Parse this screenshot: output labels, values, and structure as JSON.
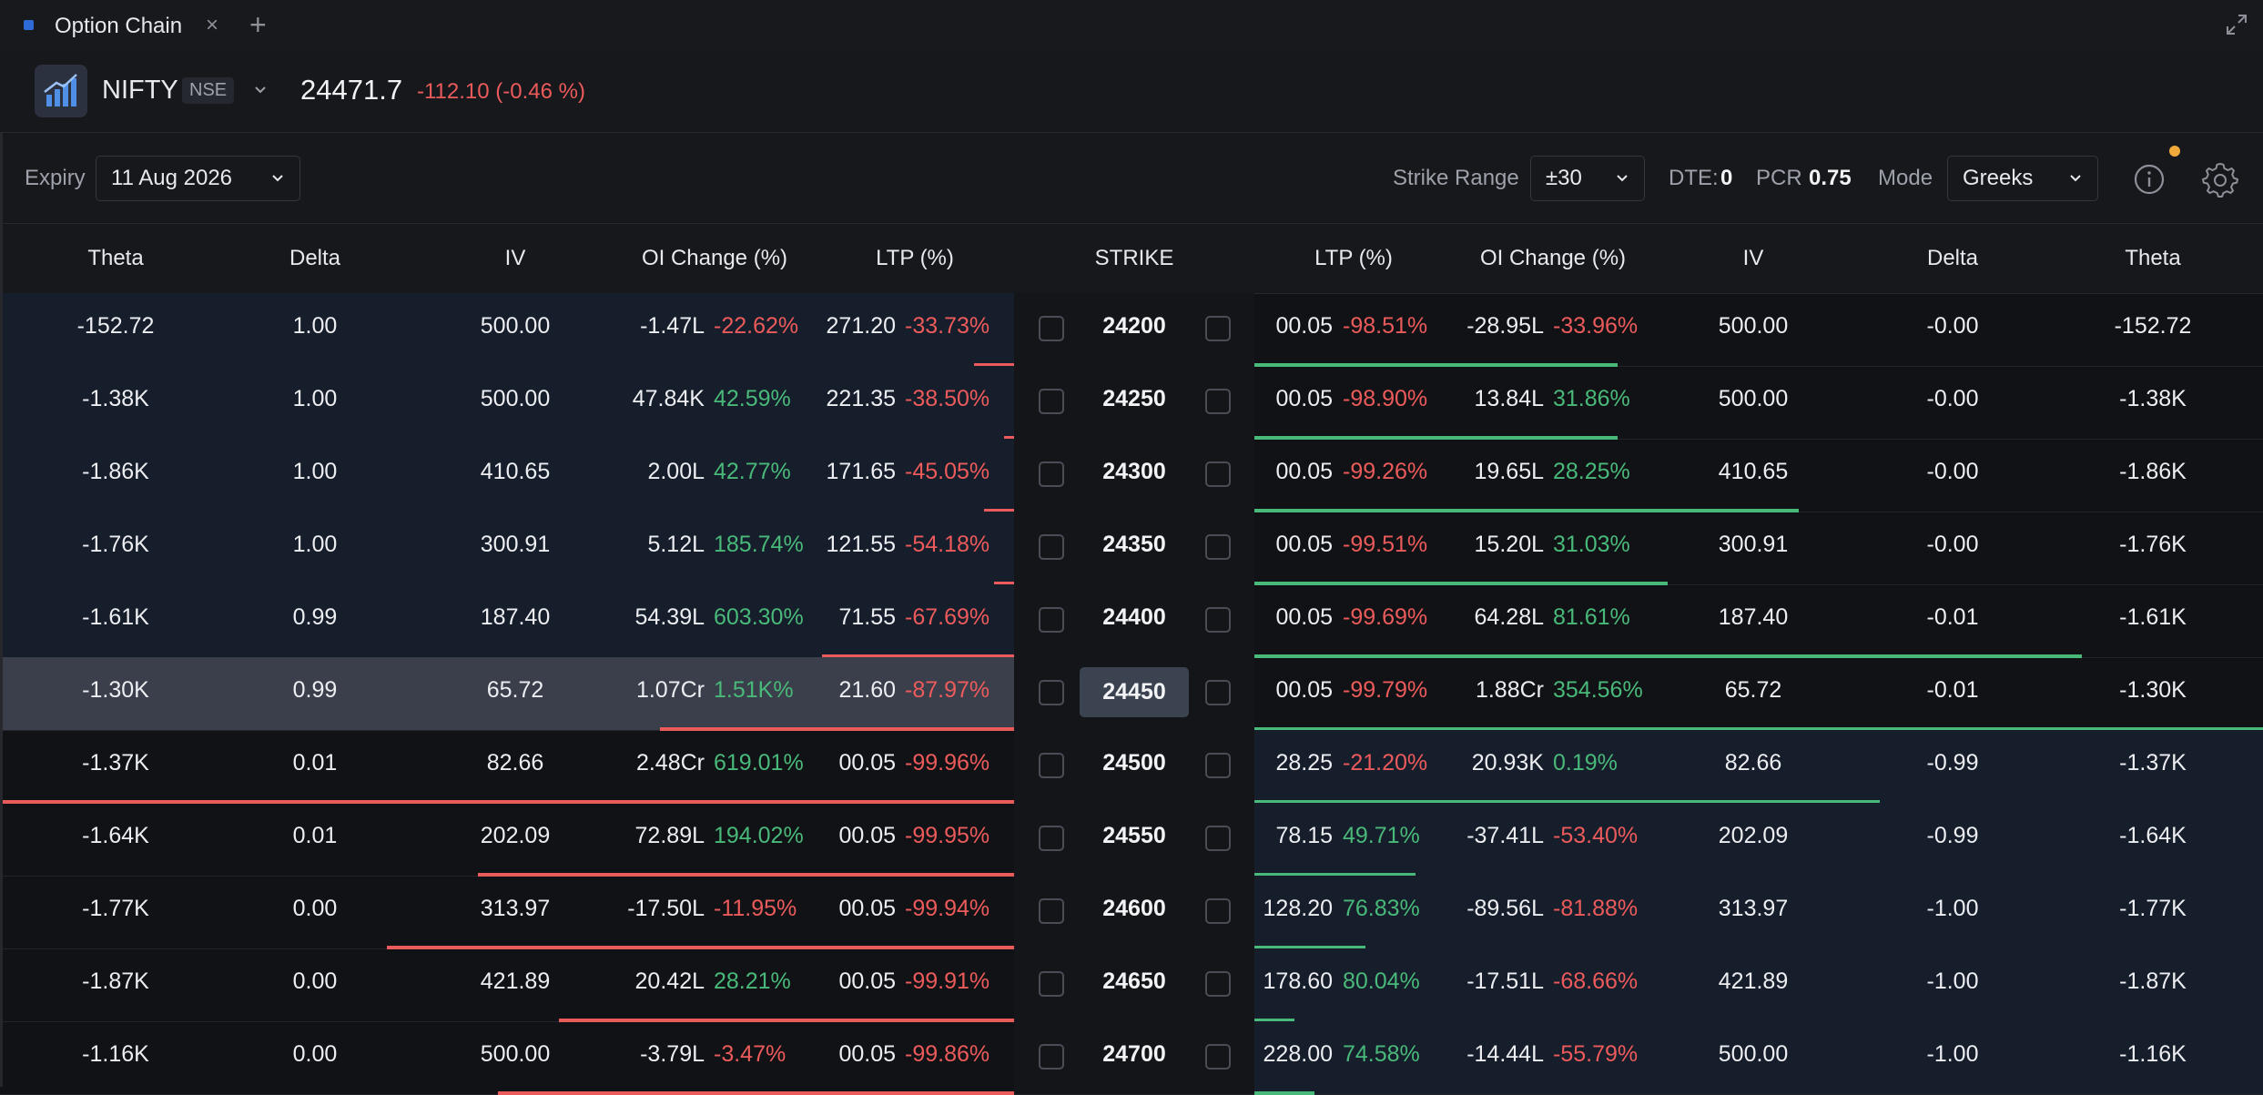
{
  "tab": {
    "title": "Option Chain",
    "close": "×",
    "add": "+"
  },
  "instrument": {
    "symbol": "NIFTY",
    "exchange": "NSE",
    "price": "24471.7",
    "change": "-112.10 (-0.46 %)"
  },
  "controls": {
    "expiry_label": "Expiry",
    "expiry_value": "11 Aug 2026",
    "strike_range_label": "Strike Range",
    "strike_range_value": "±30",
    "dte_label": "DTE:",
    "dte_value": "0",
    "pcr_label": "PCR",
    "pcr_value": "0.75",
    "mode_label": "Mode",
    "mode_value": "Greeks"
  },
  "headers": {
    "call": [
      "Theta",
      "Delta",
      "IV",
      "OI Change (%)",
      "LTP (%)"
    ],
    "strike": "STRIKE",
    "put": [
      "LTP (%)",
      "OI Change (%)",
      "IV",
      "Delta",
      "Theta"
    ]
  },
  "colors": {
    "positive": "#49b97a",
    "negative": "#ec5b5b",
    "accent": "#2e6bd6",
    "notification_dot": "#f0a93b"
  },
  "rows": [
    {
      "strike": "24200",
      "atm": false,
      "call_itm": true,
      "put_itm": false,
      "call": {
        "theta": "-152.72",
        "delta": "1.00",
        "iv": "500.00",
        "oi": "-1.47L",
        "oi_pct": "-22.62%",
        "ltp": "271.20",
        "ltp_pct": "-33.73%",
        "bar": 0.04
      },
      "put": {
        "ltp": "00.05",
        "ltp_pct": "-98.51%",
        "oi": "-28.95L",
        "oi_pct": "-33.96%",
        "iv": "500.00",
        "delta": "-0.00",
        "theta": "-152.72",
        "bar": 0.36
      }
    },
    {
      "strike": "24250",
      "atm": false,
      "call_itm": true,
      "put_itm": false,
      "call": {
        "theta": "-1.38K",
        "delta": "1.00",
        "iv": "500.00",
        "oi": "47.84K",
        "oi_pct": "42.59%",
        "ltp": "221.35",
        "ltp_pct": "-38.50%",
        "bar": 0.01
      },
      "put": {
        "ltp": "00.05",
        "ltp_pct": "-98.90%",
        "oi": "13.84L",
        "oi_pct": "31.86%",
        "iv": "500.00",
        "delta": "-0.00",
        "theta": "-1.38K",
        "bar": 0.36
      }
    },
    {
      "strike": "24300",
      "atm": false,
      "call_itm": true,
      "put_itm": false,
      "call": {
        "theta": "-1.86K",
        "delta": "1.00",
        "iv": "410.65",
        "oi": "2.00L",
        "oi_pct": "42.77%",
        "ltp": "171.65",
        "ltp_pct": "-45.05%",
        "bar": 0.03
      },
      "put": {
        "ltp": "00.05",
        "ltp_pct": "-99.26%",
        "oi": "19.65L",
        "oi_pct": "28.25%",
        "iv": "410.65",
        "delta": "-0.00",
        "theta": "-1.86K",
        "bar": 0.54
      }
    },
    {
      "strike": "24350",
      "atm": false,
      "call_itm": true,
      "put_itm": false,
      "call": {
        "theta": "-1.76K",
        "delta": "1.00",
        "iv": "300.91",
        "oi": "5.12L",
        "oi_pct": "185.74%",
        "ltp": "121.55",
        "ltp_pct": "-54.18%",
        "bar": 0.02
      },
      "put": {
        "ltp": "00.05",
        "ltp_pct": "-99.51%",
        "oi": "15.20L",
        "oi_pct": "31.03%",
        "iv": "300.91",
        "delta": "-0.00",
        "theta": "-1.76K",
        "bar": 0.41
      }
    },
    {
      "strike": "24400",
      "atm": false,
      "call_itm": true,
      "put_itm": false,
      "call": {
        "theta": "-1.61K",
        "delta": "0.99",
        "iv": "187.40",
        "oi": "54.39L",
        "oi_pct": "603.30%",
        "ltp": "71.55",
        "ltp_pct": "-67.69%",
        "bar": 0.19
      },
      "put": {
        "ltp": "00.05",
        "ltp_pct": "-99.69%",
        "oi": "64.28L",
        "oi_pct": "81.61%",
        "iv": "187.40",
        "delta": "-0.01",
        "theta": "-1.61K",
        "bar": 0.82
      }
    },
    {
      "strike": "24450",
      "atm": true,
      "call_itm": true,
      "put_itm": false,
      "call": {
        "theta": "-1.30K",
        "delta": "0.99",
        "iv": "65.72",
        "oi": "1.07Cr",
        "oi_pct": "1.51K%",
        "ltp": "21.60",
        "ltp_pct": "-87.97%",
        "bar": 0.35
      },
      "put": {
        "ltp": "00.05",
        "ltp_pct": "-99.79%",
        "oi": "1.88Cr",
        "oi_pct": "354.56%",
        "iv": "65.72",
        "delta": "-0.01",
        "theta": "-1.30K",
        "bar": 1.0
      }
    },
    {
      "strike": "24500",
      "atm": false,
      "call_itm": false,
      "put_itm": true,
      "call": {
        "theta": "-1.37K",
        "delta": "0.01",
        "iv": "82.66",
        "oi": "2.48Cr",
        "oi_pct": "619.01%",
        "ltp": "00.05",
        "ltp_pct": "-99.96%",
        "bar": 1.0
      },
      "put": {
        "ltp": "28.25",
        "ltp_pct": "-21.20%",
        "oi": "20.93K",
        "oi_pct": "0.19%",
        "iv": "82.66",
        "delta": "-0.99",
        "theta": "-1.37K",
        "bar": 0.62
      }
    },
    {
      "strike": "24550",
      "atm": false,
      "call_itm": false,
      "put_itm": true,
      "call": {
        "theta": "-1.64K",
        "delta": "0.01",
        "iv": "202.09",
        "oi": "72.89L",
        "oi_pct": "194.02%",
        "ltp": "00.05",
        "ltp_pct": "-99.95%",
        "bar": 0.53
      },
      "put": {
        "ltp": "78.15",
        "ltp_pct": "49.71%",
        "oi": "-37.41L",
        "oi_pct": "-53.40%",
        "iv": "202.09",
        "delta": "-0.99",
        "theta": "-1.64K",
        "bar": 0.16
      }
    },
    {
      "strike": "24600",
      "atm": false,
      "call_itm": false,
      "put_itm": true,
      "call": {
        "theta": "-1.77K",
        "delta": "0.00",
        "iv": "313.97",
        "oi": "-17.50L",
        "oi_pct": "-11.95%",
        "ltp": "00.05",
        "ltp_pct": "-99.94%",
        "bar": 0.62
      },
      "put": {
        "ltp": "128.20",
        "ltp_pct": "76.83%",
        "oi": "-89.56L",
        "oi_pct": "-81.88%",
        "iv": "313.97",
        "delta": "-1.00",
        "theta": "-1.77K",
        "bar": 0.11
      }
    },
    {
      "strike": "24650",
      "atm": false,
      "call_itm": false,
      "put_itm": true,
      "call": {
        "theta": "-1.87K",
        "delta": "0.00",
        "iv": "421.89",
        "oi": "20.42L",
        "oi_pct": "28.21%",
        "ltp": "00.05",
        "ltp_pct": "-99.91%",
        "bar": 0.45
      },
      "put": {
        "ltp": "178.60",
        "ltp_pct": "80.04%",
        "oi": "-17.51L",
        "oi_pct": "-68.66%",
        "iv": "421.89",
        "delta": "-1.00",
        "theta": "-1.87K",
        "bar": 0.04
      }
    },
    {
      "strike": "24700",
      "atm": false,
      "call_itm": false,
      "put_itm": true,
      "call": {
        "theta": "-1.16K",
        "delta": "0.00",
        "iv": "500.00",
        "oi": "-3.79L",
        "oi_pct": "-3.47%",
        "ltp": "00.05",
        "ltp_pct": "-99.86%",
        "bar": 0.51
      },
      "put": {
        "ltp": "228.00",
        "ltp_pct": "74.58%",
        "oi": "-14.44L",
        "oi_pct": "-55.79%",
        "iv": "500.00",
        "delta": "-1.00",
        "theta": "-1.16K",
        "bar": 0.06
      }
    }
  ]
}
